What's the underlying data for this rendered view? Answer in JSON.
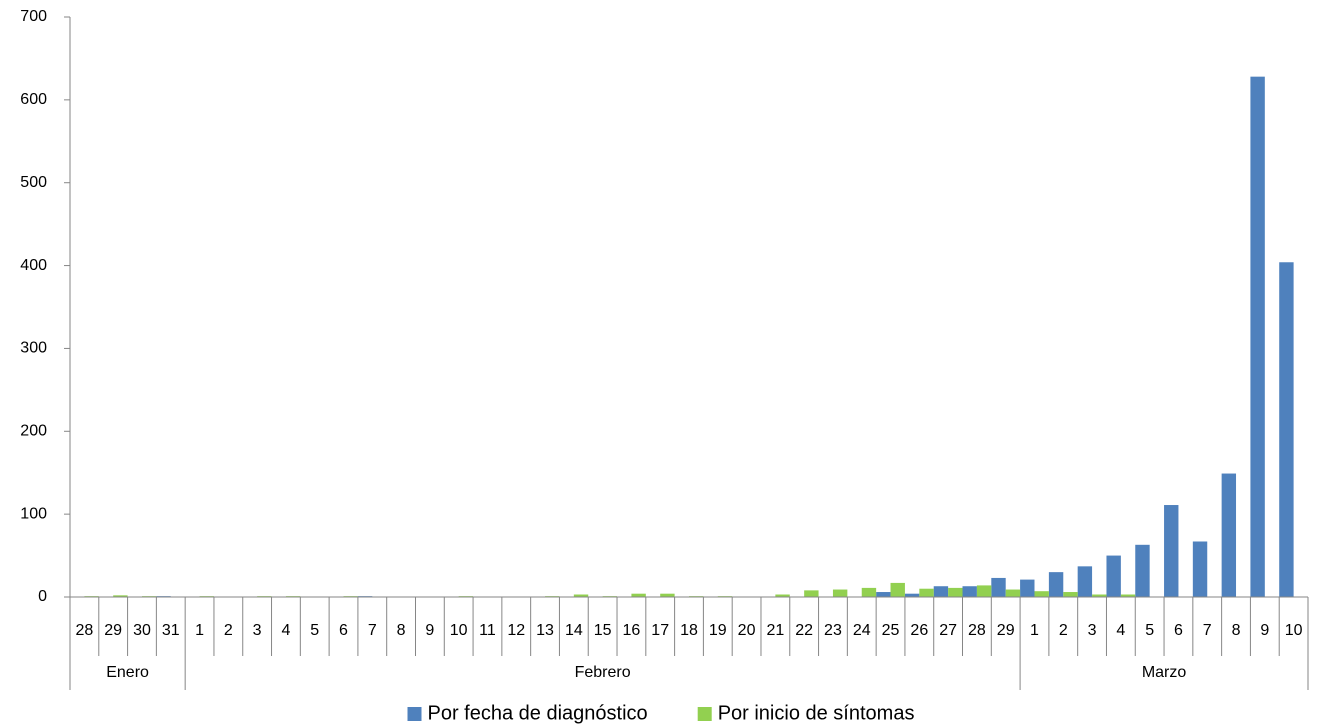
{
  "chart_data": {
    "type": "bar",
    "title": "",
    "xlabel": "",
    "ylabel": "",
    "ylim": [
      0,
      700
    ],
    "yticks": [
      0,
      100,
      200,
      300,
      400,
      500,
      600,
      700
    ],
    "grid": false,
    "legend_position": "bottom",
    "categories": [
      "28",
      "29",
      "30",
      "31",
      "1",
      "2",
      "3",
      "4",
      "5",
      "6",
      "7",
      "8",
      "9",
      "10",
      "11",
      "12",
      "13",
      "14",
      "15",
      "16",
      "17",
      "18",
      "19",
      "20",
      "21",
      "22",
      "23",
      "24",
      "25",
      "26",
      "27",
      "28",
      "29",
      "1",
      "2",
      "3",
      "4",
      "5",
      "6",
      "7",
      "8",
      "9",
      "10"
    ],
    "groups": [
      {
        "label": "Enero",
        "count": 4
      },
      {
        "label": "Febrero",
        "count": 29
      },
      {
        "label": "Marzo",
        "count": 10
      }
    ],
    "series": [
      {
        "name": "Por fecha de diagnóstico",
        "color": "#4F81BD",
        "values": [
          0,
          0,
          0,
          1,
          0,
          0,
          0,
          0,
          0,
          0,
          1,
          0,
          0,
          0,
          0,
          0,
          0,
          0,
          0,
          0,
          0,
          0,
          0,
          0,
          0,
          0,
          0,
          0,
          6,
          4,
          13,
          13,
          23,
          21,
          30,
          37,
          50,
          63,
          111,
          67,
          149,
          628,
          404
        ]
      },
      {
        "name": "Por inicio de síntomas",
        "color": "#92D050",
        "values": [
          1,
          2,
          1,
          0,
          1,
          0,
          1,
          1,
          0,
          1,
          0,
          0,
          0,
          1,
          0,
          0,
          1,
          3,
          1,
          4,
          4,
          1,
          1,
          0,
          3,
          8,
          9,
          11,
          17,
          10,
          11,
          14,
          9,
          7,
          6,
          3,
          3,
          0,
          0,
          0,
          0,
          0,
          0
        ]
      }
    ]
  }
}
